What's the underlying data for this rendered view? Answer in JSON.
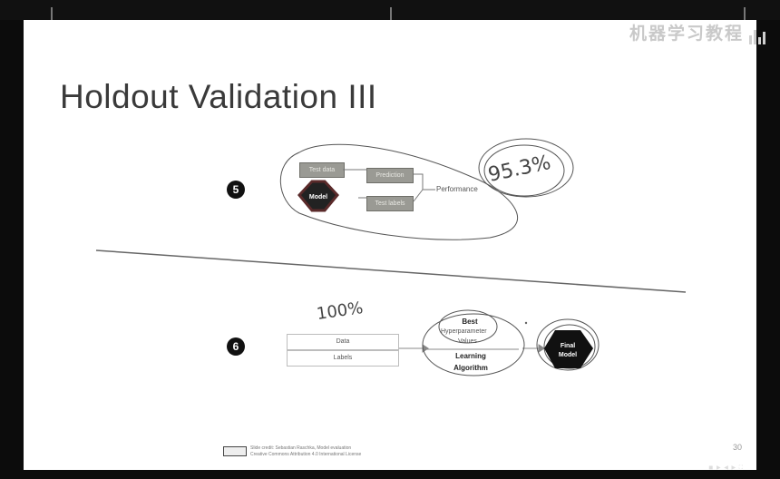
{
  "slide": {
    "title": "Holdout Validation III",
    "page_number": "30",
    "watermark": "机器学习教程",
    "credit_line1": "Slide credit: Sebastian Raschka, Model evaluation",
    "credit_line2": "Creative Commons Attribution 4.0 International License"
  },
  "step5": {
    "number": "5",
    "boxes": [
      "Test data",
      "Prediction",
      "Test labels"
    ],
    "model_label": "Model",
    "performance_label": "Performance",
    "annotation": "95.3%"
  },
  "step6": {
    "number": "6",
    "annotation": "100%",
    "data_label": "Data",
    "labels_label": "Labels",
    "best_label": "Best",
    "hyper_label": "Hyperparameter",
    "values_label": "Values",
    "learning_label": "Learning",
    "algorithm_label": "Algorithm",
    "final_label": "Final",
    "model_label": "Model"
  },
  "player": {
    "controls": "◼ ▶ ◀ ▶ ⛶"
  }
}
